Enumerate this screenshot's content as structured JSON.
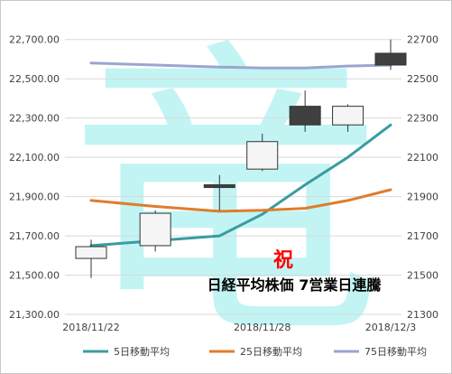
{
  "chart_data": {
    "type": "candlestick",
    "title": "",
    "xlabel": "",
    "ylabel": "",
    "ylim": [
      21300,
      22800
    ],
    "left_ticks": [
      "21,300.00",
      "21,500.00",
      "21,700.00",
      "21,900.00",
      "22,100.00",
      "22,300.00",
      "22,500.00",
      "22,700.00"
    ],
    "right_ticks": [
      "21300",
      "21500",
      "21700",
      "21900",
      "22100",
      "22300",
      "22500",
      "22700"
    ],
    "x_ticks": [
      {
        "label": "2018/11/22",
        "index": 0
      },
      {
        "label": "2018/11/28",
        "index": 4
      },
      {
        "label": "2018/12/3",
        "index": 7
      }
    ],
    "candles": [
      {
        "open": 21585,
        "high": 21680,
        "low": 21485,
        "close": 21645
      },
      {
        "open": 21650,
        "high": 21830,
        "low": 21620,
        "close": 21815
      },
      {
        "open": 21960,
        "high": 22010,
        "low": 21830,
        "close": 21950
      },
      {
        "open": 22040,
        "high": 22220,
        "low": 22030,
        "close": 22180
      },
      {
        "open": 22360,
        "high": 22440,
        "low": 22230,
        "close": 22265
      },
      {
        "open": 22265,
        "high": 22370,
        "low": 22230,
        "close": 22360
      },
      {
        "open": 22630,
        "high": 22700,
        "low": 22545,
        "close": 22570
      }
    ],
    "series": [
      {
        "name": "5日移動平均",
        "color": "#3a9ca0",
        "values": [
          21650,
          21675,
          21700,
          21810,
          21960,
          22100,
          22265
        ],
        "x": [
          0,
          1.5,
          3,
          4,
          5,
          6,
          7
        ]
      },
      {
        "name": "25日移動平均",
        "color": "#e07c2c",
        "values": [
          21880,
          21850,
          21825,
          21830,
          21840,
          21880,
          21935
        ],
        "x": [
          0,
          1.5,
          3,
          4,
          5,
          6,
          7
        ]
      },
      {
        "name": "75日移動平均",
        "color": "#9aa6cf",
        "values": [
          22580,
          22570,
          22560,
          22555,
          22555,
          22565,
          22570
        ],
        "x": [
          0,
          1.5,
          3,
          4,
          5,
          6,
          7
        ]
      }
    ],
    "candle_positions": [
      0,
      1.5,
      3,
      4,
      5,
      6,
      7
    ],
    "legend_position": "bottom",
    "grid": true,
    "annotations": {
      "celebrate": "祝",
      "caption": "日経平均株価 7営業日連騰"
    },
    "watermark": "竜"
  }
}
